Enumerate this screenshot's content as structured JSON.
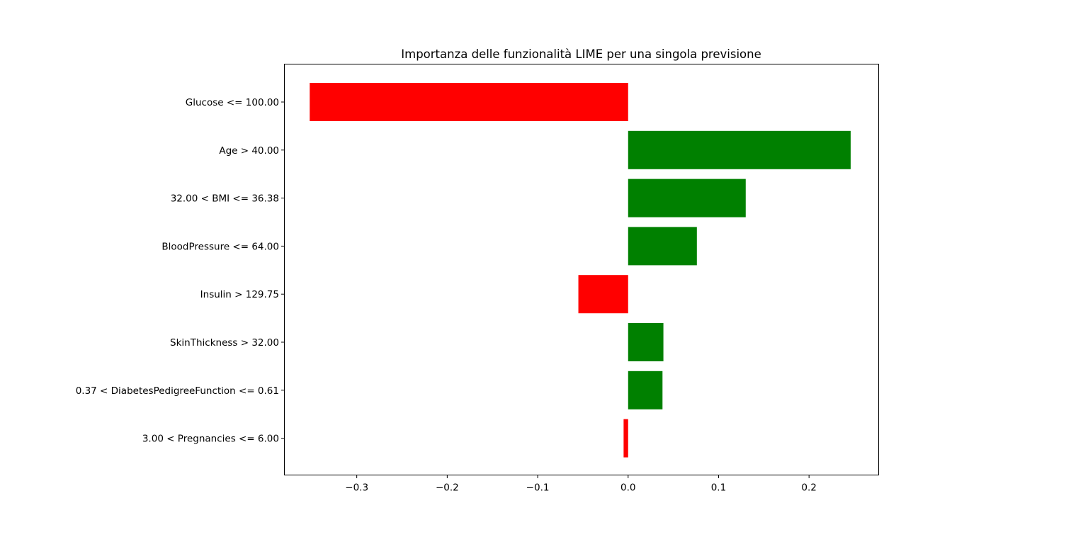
{
  "chart_data": {
    "type": "bar",
    "orientation": "horizontal",
    "title": "Importanza delle funzionalità LIME per una singola previsione",
    "xlabel": "",
    "ylabel": "",
    "categories": [
      "Glucose <= 100.00",
      "Age > 40.00",
      "32.00 < BMI <= 36.38",
      "BloodPressure <= 64.00",
      "Insulin > 129.75",
      "SkinThickness > 32.00",
      "0.37 < DiabetesPedigreeFunction <= 0.61",
      "3.00 < Pregnancies <= 6.00"
    ],
    "values": [
      -0.352,
      0.246,
      0.13,
      0.076,
      -0.055,
      0.039,
      0.038,
      -0.005
    ],
    "xlim": [
      -0.38,
      0.277
    ],
    "x_ticks": [
      -0.3,
      -0.2,
      -0.1,
      0.0,
      0.1,
      0.2
    ],
    "x_tick_labels": [
      "−0.3",
      "−0.2",
      "−0.1",
      "0.0",
      "0.1",
      "0.2"
    ],
    "colors": {
      "positive": "#008000",
      "negative": "#ff0000"
    },
    "grid": false,
    "legend": "none"
  }
}
